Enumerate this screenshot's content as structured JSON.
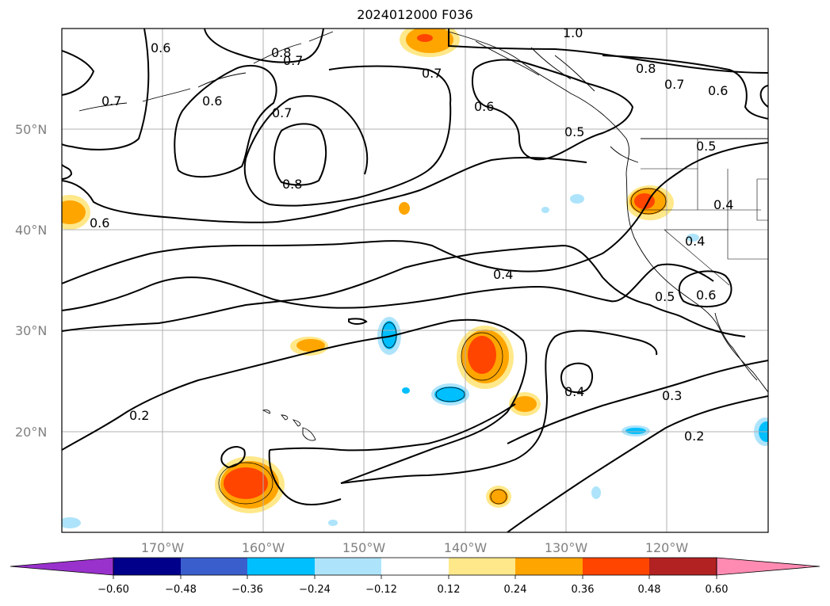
{
  "title": "2024012000 F036",
  "lat_labels": [
    "50°N",
    "40°N",
    "30°N",
    "20°N"
  ],
  "lon_labels": [
    "170°W",
    "160°W",
    "150°W",
    "140°W",
    "130°W",
    "120°W"
  ],
  "contour_labels": [
    "0.6",
    "0.8",
    "0.7",
    "0.7",
    "0.6",
    "0.7",
    "0.8",
    "0.6",
    "0.7",
    "0.6",
    "1.0",
    "0.8",
    "0.7",
    "0.6",
    "0.5",
    "0.5",
    "0.4",
    "0.4",
    "0.4",
    "0.5",
    "0.6",
    "0.4",
    "0.3",
    "0.2",
    "0.2"
  ],
  "colorbar": {
    "ticks": [
      "−0.60",
      "−0.48",
      "−0.36",
      "−0.24",
      "−0.12",
      "0.12",
      "0.24",
      "0.36",
      "0.48",
      "0.60"
    ],
    "colors": [
      "#9932cc",
      "#00008b",
      "#3a5fcd",
      "#00bfff",
      "#aee4fb",
      "#ffffff",
      "#ffe88a",
      "#ffa500",
      "#ff4500",
      "#b22222",
      "#ff8bb3"
    ]
  }
}
